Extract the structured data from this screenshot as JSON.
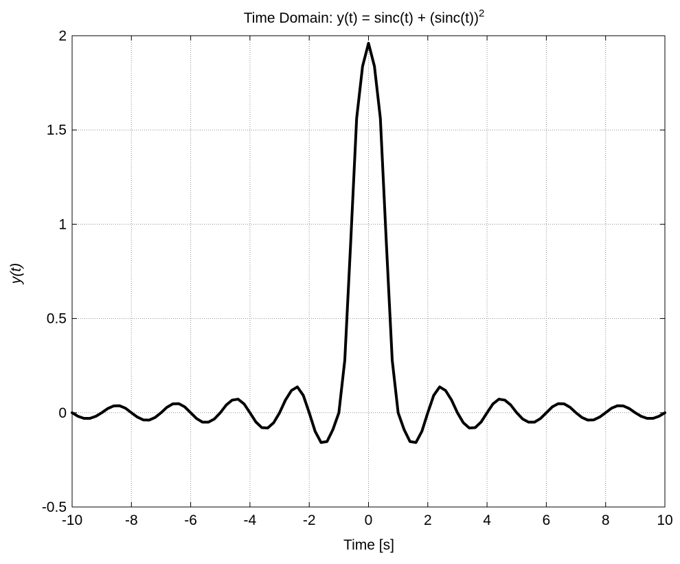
{
  "chart_data": {
    "type": "line",
    "title_main": "Time Domain: y(t) = sinc(t) + (sinc(t))",
    "title_superscript": "2",
    "xlabel": "Time [s]",
    "ylabel": "y(t)",
    "xlim": [
      -10,
      10
    ],
    "ylim": [
      -0.5,
      2
    ],
    "xticks": [
      -10,
      -8,
      -6,
      -4,
      -2,
      0,
      2,
      4,
      6,
      8,
      10
    ],
    "yticks": [
      -0.5,
      0,
      0.5,
      1,
      1.5,
      2
    ],
    "xtick_labels": [
      "-10",
      "-8",
      "-6",
      "-4",
      "-2",
      "0",
      "2",
      "4",
      "6",
      "8",
      "10"
    ],
    "ytick_labels": [
      "-0.5",
      "0",
      "0.5",
      "1",
      "1.5",
      "2"
    ],
    "grid": true,
    "line_color": "#000000",
    "series": [
      {
        "x": [
          -10.0,
          -9.8,
          -9.6,
          -9.4,
          -9.2,
          -9.0,
          -8.8,
          -8.6,
          -8.4,
          -8.2,
          -8.0,
          -7.8,
          -7.6,
          -7.4,
          -7.2,
          -7.0,
          -6.8,
          -6.6,
          -6.4,
          -6.2,
          -6.0,
          -5.8,
          -5.6,
          -5.4,
          -5.2,
          -5.0,
          -4.8,
          -4.6,
          -4.4,
          -4.2,
          -4.0,
          -3.8,
          -3.6,
          -3.4,
          -3.2,
          -3.0,
          -2.8,
          -2.6,
          -2.4,
          -2.2,
          -2.0,
          -1.8,
          -1.6,
          -1.4,
          -1.2,
          -1.0,
          -0.8,
          -0.6,
          -0.4,
          -0.2,
          0.0,
          0.2,
          0.4,
          0.6,
          0.8,
          1.0,
          1.2,
          1.4,
          1.6,
          1.8,
          2.0,
          2.2,
          2.4,
          2.6,
          2.8,
          3.0,
          3.2,
          3.4,
          3.6,
          3.8,
          4.0,
          4.2,
          4.4,
          4.6,
          4.8,
          5.0,
          5.2,
          5.4,
          5.6,
          5.8,
          6.0,
          6.2,
          6.4,
          6.6,
          6.8,
          7.0,
          7.2,
          7.4,
          7.6,
          7.8,
          8.0,
          8.2,
          8.4,
          8.6,
          8.8,
          9.0,
          9.2,
          9.4,
          9.6,
          9.8,
          10.0
        ],
        "y": [
          0.0,
          -0.019,
          -0.03,
          -0.03,
          -0.019,
          0.0,
          0.022,
          0.036,
          0.037,
          0.024,
          0.0,
          -0.023,
          -0.038,
          -0.039,
          -0.025,
          0.0,
          0.029,
          0.047,
          0.048,
          0.031,
          0.0,
          -0.031,
          -0.05,
          -0.05,
          -0.033,
          0.0,
          0.041,
          0.067,
          0.072,
          0.047,
          0.0,
          -0.049,
          -0.079,
          -0.081,
          -0.053,
          0.0,
          0.068,
          0.118,
          0.137,
          0.092,
          0.0,
          -0.099,
          -0.158,
          -0.153,
          -0.089,
          0.0,
          0.279,
          0.907,
          1.562,
          1.838,
          1.96,
          1.838,
          1.562,
          0.907,
          0.279,
          0.0,
          -0.089,
          -0.153,
          -0.158,
          -0.099,
          0.0,
          0.092,
          0.137,
          0.118,
          0.068,
          0.0,
          -0.053,
          -0.081,
          -0.079,
          -0.049,
          0.0,
          0.047,
          0.072,
          0.067,
          0.041,
          0.0,
          -0.033,
          -0.05,
          -0.05,
          -0.031,
          0.0,
          0.031,
          0.048,
          0.047,
          0.029,
          0.0,
          -0.025,
          -0.039,
          -0.038,
          -0.023,
          0.0,
          0.024,
          0.037,
          0.036,
          0.022,
          0.0,
          -0.019,
          -0.03,
          -0.03,
          -0.019,
          0.0
        ]
      }
    ]
  }
}
